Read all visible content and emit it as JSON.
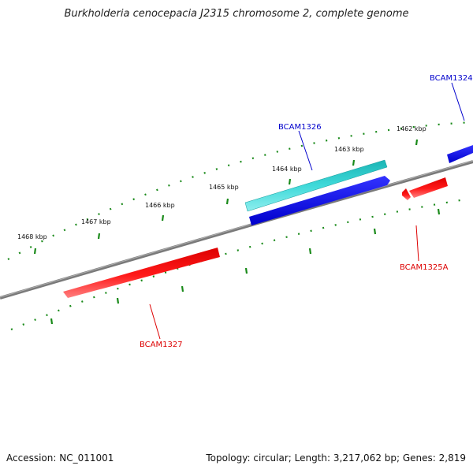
{
  "title": "Burkholderia cenocepacia J2315 chromosome 2, complete genome",
  "footer": {
    "accession": "Accession: NC_011001",
    "summary": "Topology: circular; Length: 3,217,062 bp; Genes: 2,819"
  },
  "scale_labels": [
    "1462 kbp",
    "1463 kbp",
    "1464 kbp",
    "1465 kbp",
    "1466 kbp",
    "1467 kbp",
    "1468 kbp"
  ],
  "genes": [
    {
      "name": "BCAM1324",
      "color": "#0000ff",
      "strand": "forward"
    },
    {
      "name": "BCAM1326",
      "color": "#0000ff",
      "strand": "forward"
    },
    {
      "name": "BCAM1325A",
      "color": "#ff0000",
      "strand": "reverse"
    },
    {
      "name": "BCAM1327",
      "color": "#ff0000",
      "strand": "reverse"
    }
  ],
  "colors": {
    "backbone": "#7a7a7a",
    "tick": "#1a8a1a",
    "forward_gene": "#0000ff",
    "reverse_gene": "#ff0000",
    "cds": "#20c8c8",
    "forward_label": "#0000cc",
    "reverse_label": "#dd0000"
  }
}
